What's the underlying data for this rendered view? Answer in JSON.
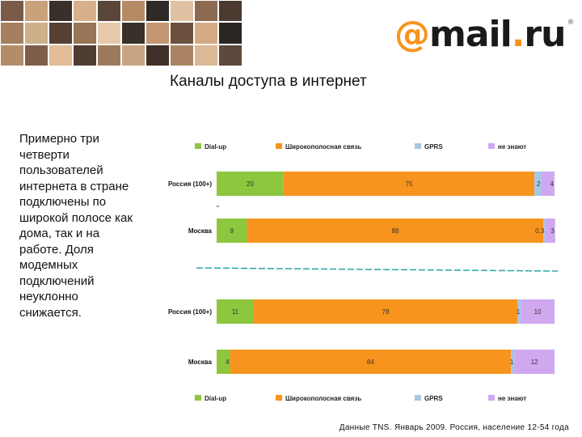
{
  "page": {
    "logo": {
      "at": "@",
      "mail": "mail",
      "dot": ".",
      "ru": "ru",
      "reg": "®"
    },
    "title": "Каналы доступа в интернет",
    "side_text": "Примерно три четверти пользователей интернета в стране подключены по широкой полосе как дома, так и на работе. Доля модемных подключений неуклонно снижается.",
    "footnote": "Данные TNS. Январь 2009. Россия, население 12-54 года",
    "photo_colors": [
      "#7a5a48",
      "#c9a27c",
      "#3b2f2a",
      "#d8b08c",
      "#5a4638",
      "#b78a66",
      "#2e2a28",
      "#e0c2a2",
      "#8c6a52",
      "#4a3a30",
      "#a6805e",
      "#ccb08a",
      "#563f33",
      "#9a7456",
      "#e6c9a8",
      "#3a302a",
      "#c29672",
      "#6b5040",
      "#d4aa84",
      "#2b2523",
      "#b48c6a",
      "#7c5e4a",
      "#e2bc96",
      "#4e3c32",
      "#9e7a5c",
      "#c8a482",
      "#3e3028",
      "#aa8462",
      "#dcb896",
      "#5e4a3c"
    ],
    "colors": {
      "dialup": "#8dc63f",
      "broadband": "#f7941d",
      "gprs": "#a4c8e6",
      "unknown": "#cfa8f0"
    }
  },
  "chart_data": {
    "type": "bar",
    "orientation": "horizontal",
    "stacked": true,
    "panels": [
      {
        "legend": [
          "Dial-up",
          "Широкополосная связь",
          "GPRS",
          "не знают"
        ],
        "legend_placement": "top",
        "categories": [
          "Россия (100+)",
          "Москва"
        ],
        "series": [
          {
            "name": "Dial-up",
            "values": [
              20,
              9
            ],
            "labels": [
              "20",
              "9"
            ],
            "color": "#8dc63f"
          },
          {
            "name": "Широкополосная связь",
            "values": [
              75,
              88
            ],
            "labels": [
              "75",
              "88"
            ],
            "color": "#f7941d"
          },
          {
            "name": "GPRS",
            "values": [
              2,
              0.3
            ],
            "labels": [
              "2",
              "0.3"
            ],
            "color": "#a4c8e6"
          },
          {
            "name": "не знают",
            "values": [
              4,
              3
            ],
            "labels": [
              "4",
              "3"
            ],
            "color": "#cfa8f0"
          }
        ]
      },
      {
        "legend": [
          "Dial-up",
          "Широкополосная связь",
          "GPRS",
          "не знают"
        ],
        "legend_placement": "bottom",
        "categories": [
          "Россия (100+)",
          "Москва"
        ],
        "series": [
          {
            "name": "Dial-up",
            "values": [
              11,
              4
            ],
            "labels": [
              "11",
              "4"
            ],
            "color": "#8dc63f"
          },
          {
            "name": "Широкополосная связь",
            "values": [
              78,
              84
            ],
            "labels": [
              "78",
              "84"
            ],
            "color": "#f7941d"
          },
          {
            "name": "GPRS",
            "values": [
              1,
              1
            ],
            "labels": [
              "1",
              "1"
            ],
            "color": "#a4c8e6"
          },
          {
            "name": "не знают",
            "values": [
              10,
              12
            ],
            "labels": [
              "10",
              "12"
            ],
            "color": "#cfa8f0"
          }
        ]
      }
    ]
  }
}
